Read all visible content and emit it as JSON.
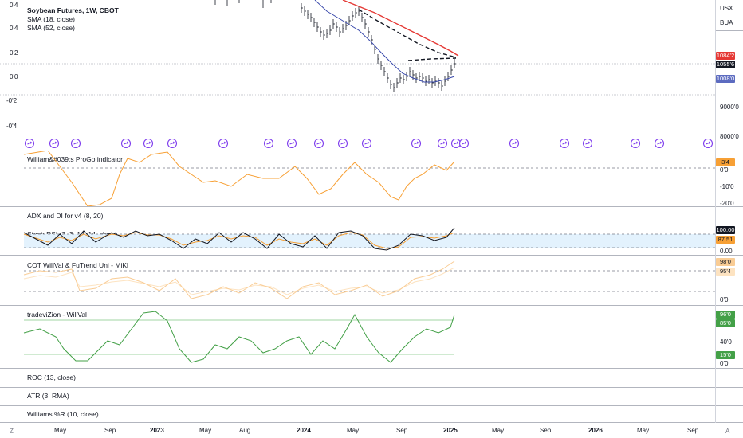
{
  "header": {
    "title": "Soybean Futures, 1W, CBOT",
    "sma18": "SMA (18, close)",
    "sma52": "SMA (52, close)"
  },
  "scale_buttons": [
    "USX",
    "BUA"
  ],
  "left_axis": [
    "0'4",
    "0'4",
    "0'2",
    "0'0",
    "-0'2",
    "-0'4"
  ],
  "right_axis_main": [
    "9000'0",
    "8000'0"
  ],
  "price_tags": {
    "sma52": "1084'2",
    "last": "1055'6",
    "sma18": "1008'0"
  },
  "panes": {
    "progo": {
      "label": "William&#039;s ProGo indicator",
      "tag": "3'4",
      "ticks": [
        "0'0",
        "-10'0",
        "-20'0"
      ]
    },
    "adx": {
      "label": "ADX and DI for v4 (8, 20)"
    },
    "stoch": {
      "label": "Stoch RSI (3, 3, 14, 14, close)",
      "tag_k": "100.00",
      "tag_d": "87.51",
      "tick": "0.00"
    },
    "cot": {
      "label": "COT WillVal & FuTrend Uni - MiKl",
      "tag1": "98'0",
      "tag2": "95'4",
      "tick": "0'0"
    },
    "tradevizion": {
      "label": "tradeviZion - WillVal",
      "tag1": "96'0",
      "tag2": "85'0",
      "tag3": "15'0",
      "tick1": "40'0",
      "tick2": "0'0"
    },
    "roc": {
      "label": "ROC (13, close)"
    },
    "atr": {
      "label": "ATR (3, RMA)"
    },
    "willr": {
      "label": "Williams %R (10, close)"
    }
  },
  "x_axis": [
    "May",
    "Sep",
    "2023",
    "May",
    "Aug",
    "2024",
    "May",
    "Sep",
    "2025",
    "May",
    "Sep",
    "2026",
    "May",
    "Sep"
  ],
  "corner_left": "Z",
  "corner_right": "A",
  "colors": {
    "sma52": "#e53935",
    "sma18": "#3949ab",
    "last_tag": "#131722",
    "progo": "#f7a035",
    "stoch_k": "#131722",
    "stoch_d": "#f7a035",
    "cot": "#f9cc94",
    "willval": "#43a047",
    "event_icon": "#7c3aed"
  }
}
